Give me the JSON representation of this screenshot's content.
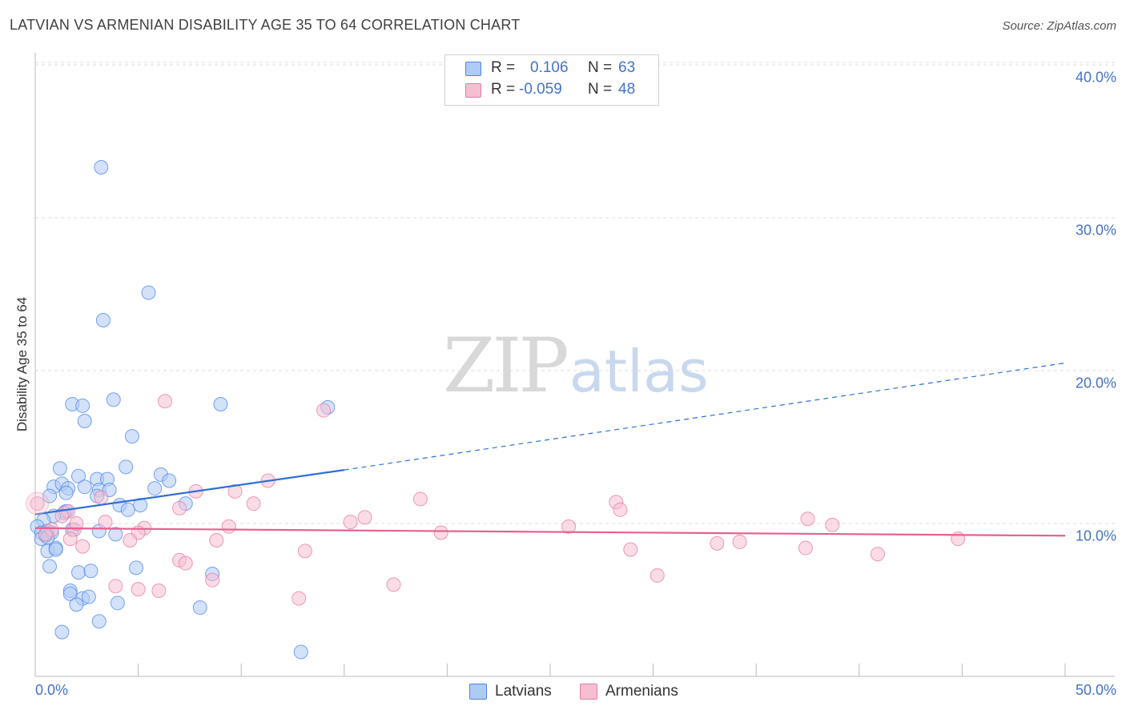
{
  "title": "LATVIAN VS ARMENIAN DISABILITY AGE 35 TO 64 CORRELATION CHART",
  "source": "Source: ZipAtlas.com",
  "watermark": {
    "zip": "ZIP",
    "atlas": "atlas"
  },
  "stats": {
    "latvians": {
      "r_label": "R =",
      "r": "0.106",
      "n_label": "N =",
      "n": "63"
    },
    "armenians": {
      "r_label": "R =",
      "r": "-0.059",
      "n_label": "N =",
      "n": "48"
    }
  },
  "legend": {
    "latvians": "Latvians",
    "armenians": "Armenians"
  },
  "chart_data": {
    "type": "scatter",
    "title": "LATVIAN VS ARMENIAN DISABILITY AGE 35 TO 64 CORRELATION CHART",
    "xlabel": "",
    "ylabel": "Disability Age 35 to 64",
    "xlim": [
      0,
      50
    ],
    "ylim": [
      0,
      42
    ],
    "x_tick_labels": [
      "0.0%",
      "50.0%"
    ],
    "y_ticks": [
      10,
      20,
      30,
      40
    ],
    "y_tick_labels": [
      "10.0%",
      "20.0%",
      "30.0%",
      "40.0%"
    ],
    "grid": true,
    "colors": {
      "latvians": "#4a86e8",
      "armenians": "#e8799f",
      "latvians_fill": "#aecbf5",
      "armenians_fill": "#f6bfd1"
    },
    "series": [
      {
        "name": "Latvians",
        "trend": {
          "x0": 0,
          "y0": 10.6,
          "x1": 15,
          "y1": 13.5,
          "dashed_to_x": 50,
          "dashed_to_y": 20.5
        },
        "points": [
          [
            3.2,
            33.3
          ],
          [
            5.5,
            25.1
          ],
          [
            3.3,
            23.3
          ],
          [
            1.8,
            17.8
          ],
          [
            2.3,
            17.7
          ],
          [
            3.8,
            18.1
          ],
          [
            9.0,
            17.8
          ],
          [
            14.2,
            17.6
          ],
          [
            2.4,
            16.7
          ],
          [
            4.7,
            15.7
          ],
          [
            1.2,
            13.6
          ],
          [
            4.4,
            13.7
          ],
          [
            6.1,
            13.2
          ],
          [
            2.1,
            13.1
          ],
          [
            3.0,
            12.9
          ],
          [
            3.5,
            12.9
          ],
          [
            6.5,
            12.8
          ],
          [
            0.9,
            12.4
          ],
          [
            1.3,
            12.6
          ],
          [
            1.6,
            12.3
          ],
          [
            2.4,
            12.4
          ],
          [
            3.1,
            12.2
          ],
          [
            3.6,
            12.2
          ],
          [
            5.8,
            12.3
          ],
          [
            1.5,
            12.0
          ],
          [
            0.7,
            11.8
          ],
          [
            3.0,
            11.8
          ],
          [
            4.1,
            11.2
          ],
          [
            5.1,
            11.2
          ],
          [
            7.3,
            11.3
          ],
          [
            1.5,
            10.8
          ],
          [
            1.4,
            10.7
          ],
          [
            4.5,
            10.9
          ],
          [
            0.9,
            10.5
          ],
          [
            0.4,
            10.2
          ],
          [
            0.1,
            9.8
          ],
          [
            0.3,
            9.4
          ],
          [
            0.5,
            9.2
          ],
          [
            0.6,
            9.5
          ],
          [
            0.8,
            9.4
          ],
          [
            1.8,
            9.6
          ],
          [
            3.1,
            9.5
          ],
          [
            0.3,
            9.0
          ],
          [
            3.9,
            9.3
          ],
          [
            0.6,
            8.2
          ],
          [
            1.0,
            8.4
          ],
          [
            1.0,
            8.3
          ],
          [
            0.7,
            7.2
          ],
          [
            2.1,
            6.8
          ],
          [
            2.7,
            6.9
          ],
          [
            4.9,
            7.1
          ],
          [
            8.6,
            6.7
          ],
          [
            1.7,
            5.6
          ],
          [
            1.7,
            5.4
          ],
          [
            2.3,
            5.1
          ],
          [
            2.6,
            5.2
          ],
          [
            2.0,
            4.7
          ],
          [
            4.0,
            4.8
          ],
          [
            8.0,
            4.5
          ],
          [
            3.1,
            3.6
          ],
          [
            1.3,
            2.9
          ],
          [
            12.9,
            1.6
          ],
          [
            0.6,
            9.1
          ]
        ]
      },
      {
        "name": "Armenians",
        "trend": {
          "x0": 0,
          "y0": 9.7,
          "x1": 50,
          "y1": 9.2
        },
        "points": [
          [
            0.1,
            11.3
          ],
          [
            6.3,
            18.0
          ],
          [
            14.0,
            17.4
          ],
          [
            11.3,
            12.8
          ],
          [
            7.8,
            12.1
          ],
          [
            9.7,
            12.1
          ],
          [
            18.7,
            11.6
          ],
          [
            28.2,
            11.4
          ],
          [
            3.2,
            11.7
          ],
          [
            10.6,
            11.3
          ],
          [
            7.0,
            11.0
          ],
          [
            28.4,
            10.9
          ],
          [
            1.6,
            10.8
          ],
          [
            1.3,
            10.5
          ],
          [
            16.0,
            10.4
          ],
          [
            15.3,
            10.1
          ],
          [
            37.5,
            10.3
          ],
          [
            38.7,
            9.9
          ],
          [
            9.4,
            9.8
          ],
          [
            25.9,
            9.8
          ],
          [
            5.3,
            9.7
          ],
          [
            0.8,
            9.6
          ],
          [
            1.9,
            9.6
          ],
          [
            5.0,
            9.4
          ],
          [
            19.7,
            9.4
          ],
          [
            44.8,
            9.0
          ],
          [
            1.7,
            9.0
          ],
          [
            4.6,
            8.9
          ],
          [
            8.8,
            8.9
          ],
          [
            33.1,
            8.7
          ],
          [
            34.2,
            8.8
          ],
          [
            2.3,
            8.5
          ],
          [
            28.9,
            8.3
          ],
          [
            13.1,
            8.2
          ],
          [
            37.4,
            8.4
          ],
          [
            40.9,
            8.0
          ],
          [
            7.0,
            7.6
          ],
          [
            7.3,
            7.4
          ],
          [
            8.6,
            6.3
          ],
          [
            30.2,
            6.6
          ],
          [
            17.4,
            6.0
          ],
          [
            3.9,
            5.9
          ],
          [
            5.0,
            5.7
          ],
          [
            6.0,
            5.6
          ],
          [
            12.8,
            5.1
          ],
          [
            0.5,
            9.3
          ],
          [
            3.4,
            10.1
          ],
          [
            2.0,
            10.0
          ]
        ]
      }
    ]
  }
}
